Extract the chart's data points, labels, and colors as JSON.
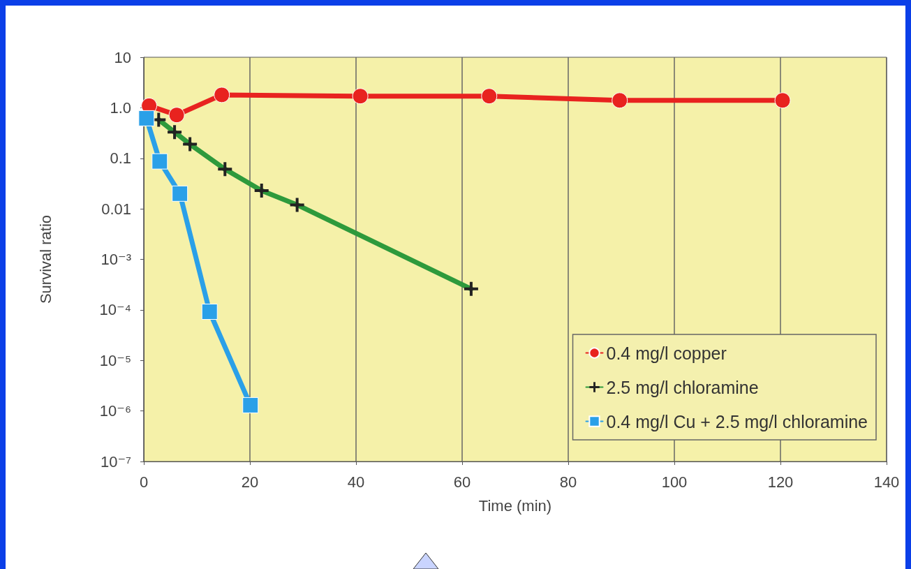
{
  "chart_data": {
    "type": "line",
    "xlabel": "Time (min)",
    "ylabel": "Survival ratio",
    "log": "y",
    "grid": "x",
    "legend": "bottom right",
    "line_style": "solid",
    "xlim": [
      0,
      140
    ],
    "xticks": [
      0,
      20,
      40,
      60,
      80,
      100,
      120,
      140
    ],
    "ylim": [
      1e-07,
      10
    ],
    "yticks": [
      10,
      {
        "value": 1,
        "label": "1.0"
      },
      0.1,
      0.01,
      {
        "value": 0.001,
        "label": "10⁻³"
      },
      {
        "value": 0.0001,
        "label": "10⁻⁴"
      },
      {
        "value": 1e-05,
        "label": "10⁻⁵"
      },
      {
        "value": 1e-06,
        "label": "10⁻⁶"
      },
      {
        "value": 1e-07,
        "label": "10⁻⁷"
      }
    ],
    "series": [
      {
        "name": "0.4 mg/l copper",
        "color": "#e8231f",
        "marker": "circle",
        "x": [
          1.0,
          6.2,
          14.7,
          40.8,
          65.1,
          89.7,
          120.4
        ],
        "values": [
          1.1,
          0.72,
          1.8,
          1.7,
          1.7,
          1.4,
          1.4
        ]
      },
      {
        "name": "2.5 mg/l chloramine",
        "color": "#2e9a3c",
        "marker": "cross",
        "x": [
          2.8,
          5.8,
          8.7,
          15.3,
          22.2,
          28.9,
          61.7
        ],
        "values": [
          0.58,
          0.33,
          0.19,
          0.061,
          0.023,
          0.012,
          0.00026
        ]
      },
      {
        "name": "0.4 mg/l Cu + 2.5 mg/l chloramine",
        "color": "#2aa0e8",
        "marker": "square",
        "x": [
          0.5,
          3.0,
          6.8,
          12.4,
          20.1
        ],
        "values": [
          0.62,
          0.087,
          0.02,
          9.2e-05,
          1.3e-06
        ]
      }
    ]
  }
}
